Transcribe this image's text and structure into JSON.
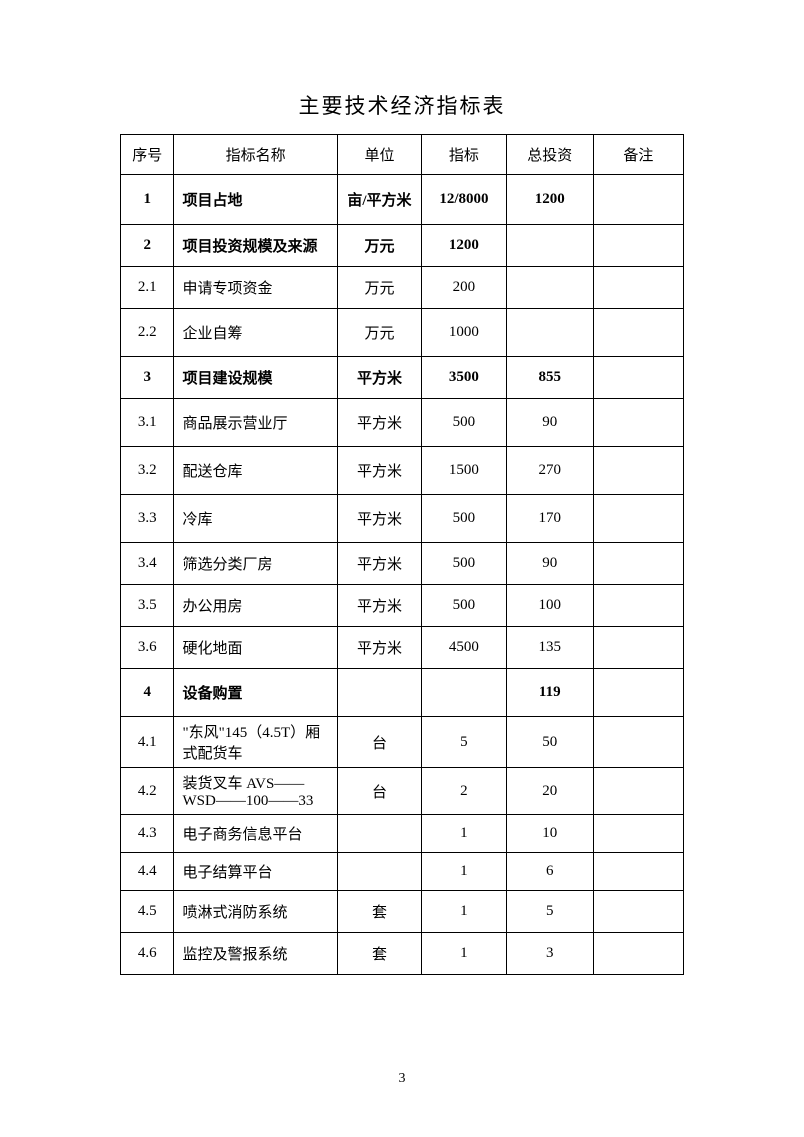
{
  "title": "主要技术经济指标表",
  "page_number": "3",
  "columns": [
    "序号",
    "指标名称",
    "单位",
    "指标",
    "总投资",
    "备注"
  ],
  "rows": [
    {
      "seq": "1",
      "name": "项目占地",
      "unit": "亩/平方米",
      "indicator": "12/8000",
      "investment": "1200",
      "remark": "",
      "bold": true,
      "height": "h-50"
    },
    {
      "seq": "2",
      "name": "项目投资规模及来源",
      "unit": "万元",
      "indicator": "1200",
      "investment": "",
      "remark": "",
      "bold": true,
      "height": "h-42"
    },
    {
      "seq": "2.1",
      "name": "申请专项资金",
      "unit": "万元",
      "indicator": "200",
      "investment": "",
      "remark": "",
      "bold": false,
      "height": "h-42"
    },
    {
      "seq": "2.2",
      "name": "企业自筹",
      "unit": "万元",
      "indicator": "1000",
      "investment": "",
      "remark": "",
      "bold": false,
      "height": "h-48"
    },
    {
      "seq": "3",
      "name": "项目建设规模",
      "unit": "平方米",
      "indicator": "3500",
      "investment": "855",
      "remark": "",
      "bold": true,
      "height": "h-42"
    },
    {
      "seq": "3.1",
      "name": "商品展示营业厅",
      "unit": "平方米",
      "indicator": "500",
      "investment": "90",
      "remark": "",
      "bold": false,
      "height": "h-48"
    },
    {
      "seq": "3.2",
      "name": "配送仓库",
      "unit": "平方米",
      "indicator": "1500",
      "investment": "270",
      "remark": "",
      "bold": false,
      "height": "h-48"
    },
    {
      "seq": "3.3",
      "name": "冷库",
      "unit": "平方米",
      "indicator": "500",
      "investment": "170",
      "remark": "",
      "bold": false,
      "height": "h-48"
    },
    {
      "seq": "3.4",
      "name": "筛选分类厂房",
      "unit": "平方米",
      "indicator": "500",
      "investment": "90",
      "remark": "",
      "bold": false,
      "height": "h-42"
    },
    {
      "seq": "3.5",
      "name": "办公用房",
      "unit": "平方米",
      "indicator": "500",
      "investment": "100",
      "remark": "",
      "bold": false,
      "height": "h-42"
    },
    {
      "seq": "3.6",
      "name": "硬化地面",
      "unit": "平方米",
      "indicator": "4500",
      "investment": "135",
      "remark": "",
      "bold": false,
      "height": "h-42"
    },
    {
      "seq": "4",
      "name": "设备购置",
      "unit": "",
      "indicator": "",
      "investment": "119",
      "remark": "",
      "bold": true,
      "height": "h-48"
    },
    {
      "seq": "4.1",
      "name": "\"东风\"145（4.5T）厢式配货车",
      "unit": "台",
      "indicator": "5",
      "investment": "50",
      "remark": "",
      "bold": false,
      "height": "h-40"
    },
    {
      "seq": "4.2",
      "name": "装货叉车 AVS——WSD——100——33",
      "unit": "台",
      "indicator": "2",
      "investment": "20",
      "remark": "",
      "bold": false,
      "height": "h-40"
    },
    {
      "seq": "4.3",
      "name": "电子商务信息平台",
      "unit": "",
      "indicator": "1",
      "investment": "10",
      "remark": "",
      "bold": false,
      "height": "h-38"
    },
    {
      "seq": "4.4",
      "name": "电子结算平台",
      "unit": "",
      "indicator": "1",
      "investment": "6",
      "remark": "",
      "bold": false,
      "height": "h-38"
    },
    {
      "seq": "4.5",
      "name": "喷淋式消防系统",
      "unit": "套",
      "indicator": "1",
      "investment": "5",
      "remark": "",
      "bold": false,
      "height": "h-42"
    },
    {
      "seq": "4.6",
      "name": "监控及警报系统",
      "unit": "套",
      "indicator": "1",
      "investment": "3",
      "remark": "",
      "bold": false,
      "height": "h-42"
    }
  ]
}
